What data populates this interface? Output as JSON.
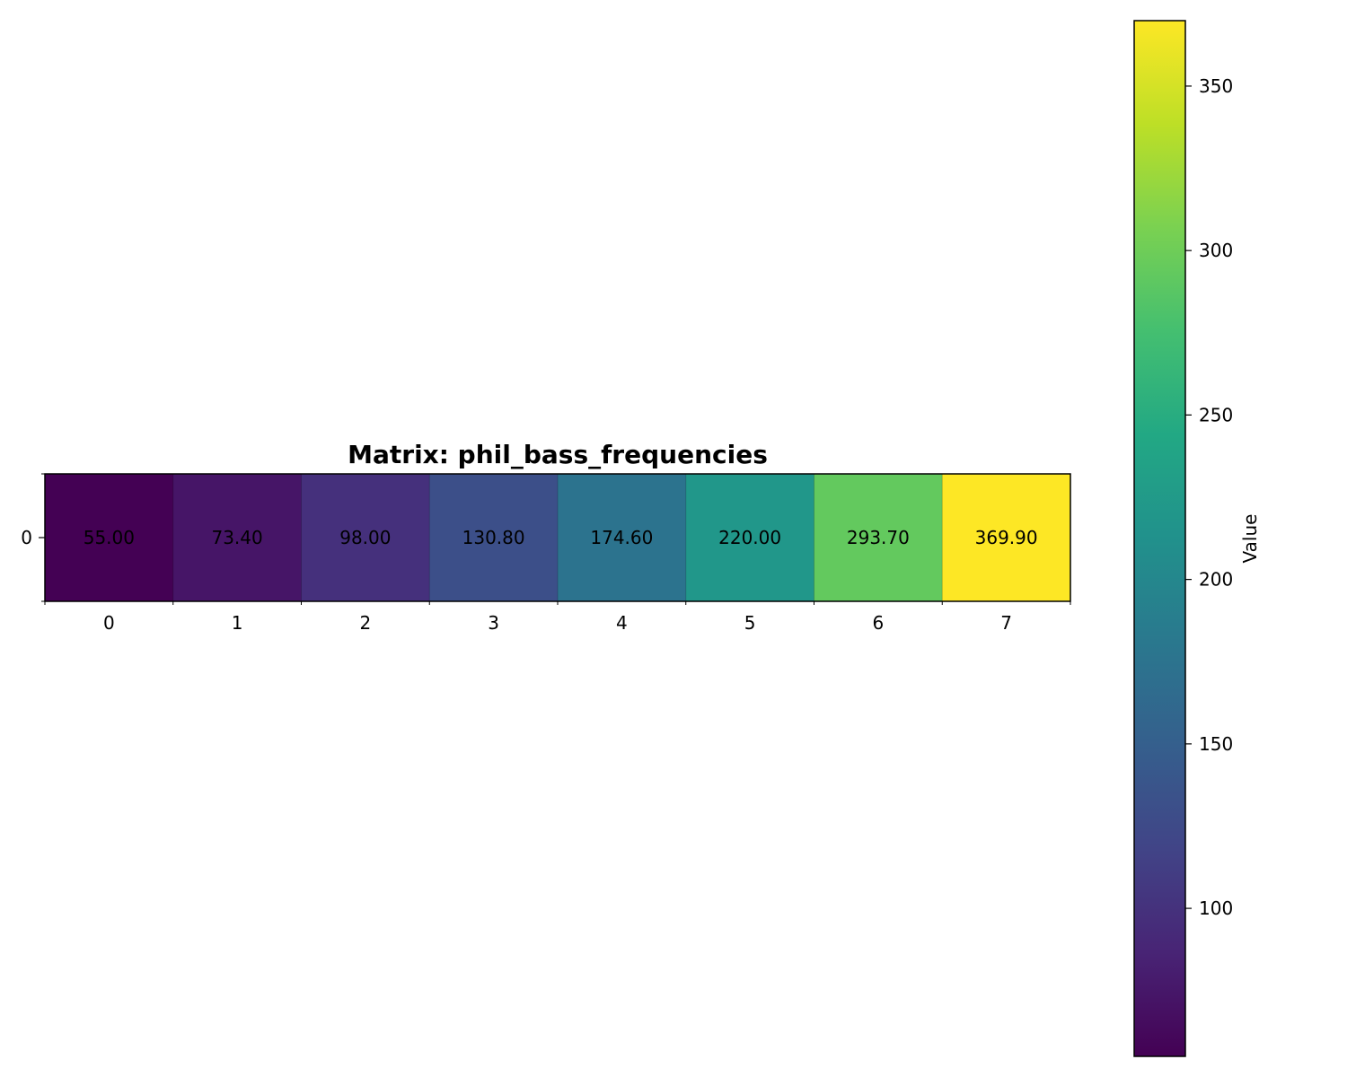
{
  "chart_data": {
    "type": "heatmap",
    "title": "Matrix: phil_bass_frequencies",
    "rows": [
      "0"
    ],
    "columns": [
      "0",
      "1",
      "2",
      "3",
      "4",
      "5",
      "6",
      "7"
    ],
    "values": [
      [
        55.0,
        73.4,
        98.0,
        130.8,
        174.6,
        220.0,
        293.7,
        369.9
      ]
    ],
    "cell_labels": [
      [
        "55.00",
        "73.40",
        "98.00",
        "130.80",
        "174.60",
        "220.00",
        "293.70",
        "369.90"
      ]
    ],
    "colormap": "viridis",
    "colorbar": {
      "label": "Value",
      "range": [
        55.0,
        369.9
      ],
      "ticks": [
        100,
        150,
        200,
        250,
        300,
        350
      ],
      "tick_labels": [
        "100",
        "150",
        "200",
        "250",
        "300",
        "350"
      ]
    },
    "grid": false,
    "legend": "colorbar-right"
  }
}
